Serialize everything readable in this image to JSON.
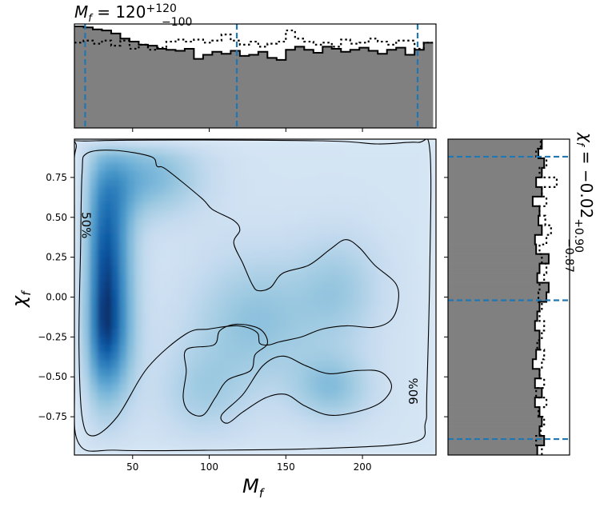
{
  "figure": {
    "top_title": {
      "main": "M",
      "sub": "f",
      "eq": " = 120",
      "sup": "+120",
      "inf": "−100"
    },
    "side_title": {
      "main": "χ",
      "sub": "f",
      "eq": " = −0.02",
      "sup": "+0.90",
      "inf": "−0.87"
    }
  },
  "chart_data": [
    {
      "type": "heatmap",
      "name": "joint-density",
      "xlabel": {
        "main": "M",
        "sub": "f"
      },
      "ylabel": {
        "main": "χ",
        "sub": "f"
      },
      "xlim": [
        12,
        248
      ],
      "ylim": [
        -0.99,
        0.99
      ],
      "xticks": [
        50,
        100,
        150,
        200
      ],
      "yticks": [
        -0.75,
        -0.5,
        -0.25,
        0.0,
        0.25,
        0.5,
        0.75
      ],
      "xtick_labels": [
        "50",
        "100",
        "150",
        "200"
      ],
      "ytick_labels": [
        "−0.75",
        "−0.50",
        "−0.25",
        "0.00",
        "0.25",
        "0.50",
        "0.75"
      ],
      "colormap": "Blues",
      "density_peaks": [
        {
          "x": 33,
          "y": 0.35,
          "weight": 1.0,
          "sx": 12,
          "sy": 0.35
        },
        {
          "x": 33,
          "y": -0.27,
          "weight": 1.0,
          "sx": 12,
          "sy": 0.3
        },
        {
          "x": 60,
          "y": 0.75,
          "weight": 0.55,
          "sx": 25,
          "sy": 0.18
        },
        {
          "x": 130,
          "y": -0.15,
          "weight": 0.45,
          "sx": 30,
          "sy": 0.3
        },
        {
          "x": 185,
          "y": 0.05,
          "weight": 0.35,
          "sx": 20,
          "sy": 0.25
        },
        {
          "x": 180,
          "y": -0.57,
          "weight": 0.45,
          "sx": 18,
          "sy": 0.15
        },
        {
          "x": 95,
          "y": -0.6,
          "weight": 0.3,
          "sx": 20,
          "sy": 0.2
        }
      ],
      "contours": [
        {
          "label": "50%",
          "label_at": [
            17,
            0.45
          ],
          "points": [
            [
              17,
              0.78
            ],
            [
              20,
              0.9
            ],
            [
              38,
              0.92
            ],
            [
              62,
              0.88
            ],
            [
              66,
              0.82
            ],
            [
              72,
              0.8
            ],
            [
              95,
              0.62
            ],
            [
              102,
              0.55
            ],
            [
              116,
              0.48
            ],
            [
              120,
              0.42
            ],
            [
              116,
              0.34
            ],
            [
              122,
              0.21
            ],
            [
              128,
              0.08
            ],
            [
              132,
              0.04
            ],
            [
              140,
              0.06
            ],
            [
              148,
              0.15
            ],
            [
              165,
              0.2
            ],
            [
              179,
              0.3
            ],
            [
              189,
              0.36
            ],
            [
              198,
              0.31
            ],
            [
              208,
              0.2
            ],
            [
              222,
              0.08
            ],
            [
              223,
              -0.05
            ],
            [
              218,
              -0.15
            ],
            [
              207,
              -0.19
            ],
            [
              190,
              -0.18
            ],
            [
              174,
              -0.2
            ],
            [
              160,
              -0.25
            ],
            [
              146,
              -0.28
            ],
            [
              139,
              -0.3
            ],
            [
              133,
              -0.29
            ],
            [
              131,
              -0.22
            ],
            [
              119,
              -0.18
            ],
            [
              100,
              -0.2
            ],
            [
              85,
              -0.23
            ],
            [
              60,
              -0.44
            ],
            [
              40,
              -0.75
            ],
            [
              24,
              -0.87
            ],
            [
              17,
              -0.75
            ],
            [
              15,
              -0.3
            ],
            [
              16,
              0.3
            ]
          ]
        },
        {
          "label": "",
          "points": [
            [
              103,
              -0.3
            ],
            [
              107,
              -0.21
            ],
            [
              118,
              -0.17
            ],
            [
              133,
              -0.2
            ],
            [
              138,
              -0.29
            ],
            [
              130,
              -0.36
            ],
            [
              127,
              -0.46
            ],
            [
              112,
              -0.52
            ],
            [
              104,
              -0.63
            ],
            [
              96,
              -0.74
            ],
            [
              87,
              -0.72
            ],
            [
              83,
              -0.63
            ],
            [
              85,
              -0.47
            ],
            [
              85,
              -0.33
            ]
          ]
        },
        {
          "label": "",
          "points": [
            [
              108,
              -0.74
            ],
            [
              122,
              -0.61
            ],
            [
              135,
              -0.43
            ],
            [
              148,
              -0.37
            ],
            [
              163,
              -0.43
            ],
            [
              178,
              -0.48
            ],
            [
              197,
              -0.46
            ],
            [
              212,
              -0.47
            ],
            [
              219,
              -0.56
            ],
            [
              212,
              -0.66
            ],
            [
              196,
              -0.72
            ],
            [
              178,
              -0.74
            ],
            [
              162,
              -0.68
            ],
            [
              150,
              -0.61
            ],
            [
              137,
              -0.63
            ],
            [
              122,
              -0.72
            ],
            [
              112,
              -0.79
            ]
          ]
        },
        {
          "label": "90%",
          "label_at": [
            236,
            -0.59
          ],
          "points": [
            [
              13,
              0.93
            ],
            [
              26,
              0.98
            ],
            [
              170,
              0.98
            ],
            [
              210,
              0.96
            ],
            [
              236,
              0.97
            ],
            [
              244,
              0.92
            ],
            [
              244,
              0.2
            ],
            [
              242,
              -0.6
            ],
            [
              241,
              -0.79
            ],
            [
              233,
              -0.91
            ],
            [
              170,
              -0.95
            ],
            [
              100,
              -0.96
            ],
            [
              40,
              -0.96
            ],
            [
              15,
              -0.92
            ],
            [
              12,
              -0.5
            ],
            [
              12,
              0.5
            ]
          ]
        }
      ]
    },
    {
      "type": "bar",
      "name": "M_f marginal histogram",
      "xlim": [
        12,
        248
      ],
      "quantile_lines": [
        19,
        118,
        236
      ],
      "series": [
        {
          "style": "filled",
          "x": [
            12,
            18,
            24,
            30,
            36,
            42,
            48,
            54,
            60,
            66,
            72,
            78,
            84,
            90,
            96,
            102,
            108,
            114,
            120,
            126,
            132,
            138,
            144,
            150,
            156,
            162,
            168,
            174,
            180,
            186,
            192,
            198,
            204,
            210,
            216,
            222,
            228,
            234,
            240
          ],
          "values": [
            1.0,
            0.99,
            0.97,
            0.96,
            0.93,
            0.88,
            0.85,
            0.82,
            0.81,
            0.78,
            0.77,
            0.76,
            0.78,
            0.68,
            0.72,
            0.75,
            0.73,
            0.76,
            0.71,
            0.72,
            0.75,
            0.69,
            0.67,
            0.77,
            0.8,
            0.77,
            0.74,
            0.8,
            0.78,
            0.75,
            0.77,
            0.79,
            0.76,
            0.73,
            0.77,
            0.79,
            0.72,
            0.77,
            0.84
          ]
        },
        {
          "style": "dotted",
          "x": [
            12,
            18,
            24,
            30,
            36,
            42,
            48,
            54,
            60,
            66,
            72,
            78,
            84,
            90,
            96,
            102,
            108,
            114,
            120,
            126,
            132,
            138,
            144,
            150,
            156,
            162,
            168,
            174,
            180,
            186,
            192,
            198,
            204,
            210,
            216,
            222,
            228,
            234,
            240
          ],
          "values": [
            0.84,
            0.86,
            0.83,
            0.86,
            0.81,
            0.86,
            0.78,
            0.82,
            0.77,
            0.79,
            0.85,
            0.87,
            0.85,
            0.87,
            0.84,
            0.86,
            0.92,
            0.86,
            0.82,
            0.85,
            0.8,
            0.83,
            0.85,
            0.96,
            0.88,
            0.85,
            0.82,
            0.84,
            0.8,
            0.87,
            0.83,
            0.84,
            0.88,
            0.85,
            0.82,
            0.86,
            0.86,
            0.78,
            0.84
          ]
        }
      ]
    },
    {
      "type": "bar",
      "name": "chi_f marginal histogram",
      "orientation": "horizontal",
      "ylim": [
        -0.99,
        0.99
      ],
      "quantile_lines": [
        -0.89,
        -0.02,
        0.88
      ],
      "series": [
        {
          "style": "filled",
          "y": [
            -0.99,
            -0.93,
            -0.87,
            -0.81,
            -0.75,
            -0.69,
            -0.63,
            -0.57,
            -0.51,
            -0.45,
            -0.39,
            -0.33,
            -0.27,
            -0.21,
            -0.15,
            -0.09,
            -0.03,
            0.03,
            0.09,
            0.15,
            0.21,
            0.27,
            0.33,
            0.39,
            0.45,
            0.51,
            0.57,
            0.63,
            0.69,
            0.75,
            0.81,
            0.87,
            0.93
          ],
          "values": [
            0.78,
            0.84,
            0.8,
            0.82,
            0.8,
            0.76,
            0.82,
            0.76,
            0.8,
            0.74,
            0.77,
            0.8,
            0.8,
            0.76,
            0.78,
            0.8,
            0.86,
            0.88,
            0.78,
            0.8,
            0.88,
            0.77,
            0.76,
            0.82,
            0.79,
            0.8,
            0.74,
            0.82,
            0.77,
            0.82,
            0.84,
            0.79,
            0.82
          ]
        },
        {
          "style": "dotted",
          "y": [
            -0.99,
            -0.93,
            -0.87,
            -0.81,
            -0.75,
            -0.69,
            -0.63,
            -0.57,
            -0.51,
            -0.45,
            -0.39,
            -0.33,
            -0.27,
            -0.21,
            -0.15,
            -0.09,
            -0.03,
            0.03,
            0.09,
            0.15,
            0.21,
            0.27,
            0.33,
            0.39,
            0.45,
            0.51,
            0.57,
            0.63,
            0.69,
            0.75,
            0.81,
            0.87,
            0.93
          ],
          "values": [
            0.82,
            0.77,
            0.81,
            0.84,
            0.79,
            0.86,
            0.77,
            0.84,
            0.8,
            0.82,
            0.84,
            0.78,
            0.82,
            0.84,
            0.8,
            0.82,
            0.79,
            0.8,
            0.84,
            0.86,
            0.82,
            0.8,
            0.86,
            0.9,
            0.85,
            0.8,
            0.86,
            0.82,
            0.95,
            0.8,
            0.86,
            0.77,
            0.81
          ]
        }
      ]
    }
  ]
}
